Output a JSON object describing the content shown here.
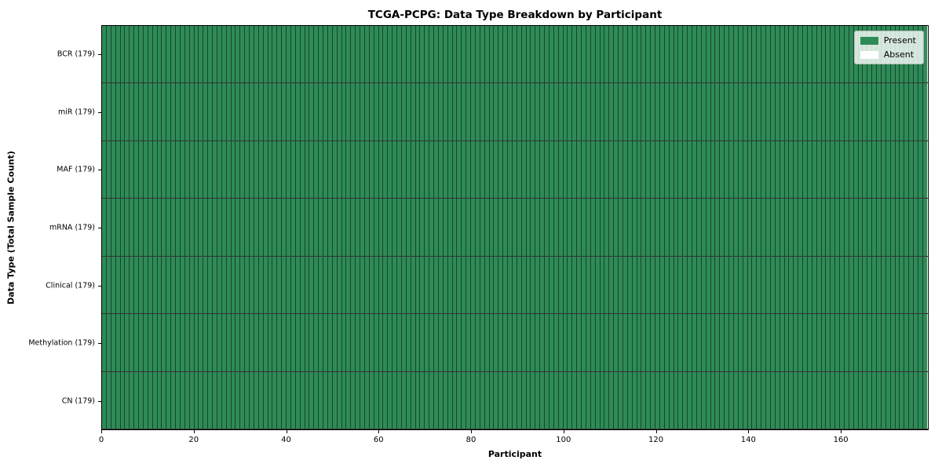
{
  "chart_data": {
    "type": "heatmap",
    "title": "TCGA-PCPG: Data Type Breakdown by Participant",
    "xlabel": "Participant",
    "ylabel": "Data Type (Total Sample Count)",
    "n_participants": 179,
    "xlim": [
      0,
      179
    ],
    "x_ticks": [
      0,
      20,
      40,
      60,
      80,
      100,
      120,
      140,
      160
    ],
    "rows": [
      {
        "label": "BCR (179)",
        "data_type": "BCR",
        "total_samples": 179,
        "present_count": 179,
        "absent_count": 0
      },
      {
        "label": "miR (179)",
        "data_type": "miR",
        "total_samples": 179,
        "present_count": 179,
        "absent_count": 0
      },
      {
        "label": "MAF (179)",
        "data_type": "MAF",
        "total_samples": 179,
        "present_count": 179,
        "absent_count": 0
      },
      {
        "label": "mRNA (179)",
        "data_type": "mRNA",
        "total_samples": 179,
        "present_count": 179,
        "absent_count": 0
      },
      {
        "label": "Clinical (179)",
        "data_type": "Clinical",
        "total_samples": 179,
        "present_count": 179,
        "absent_count": 0
      },
      {
        "label": "Methylation (179)",
        "data_type": "Methylation",
        "total_samples": 179,
        "present_count": 179,
        "absent_count": 0
      },
      {
        "label": "CN (179)",
        "data_type": "CN",
        "total_samples": 179,
        "present_count": 179,
        "absent_count": 0
      }
    ],
    "legend": {
      "position": "upper right",
      "items": [
        {
          "label": "Present",
          "color": "#2e8b57"
        },
        {
          "label": "Absent",
          "color": "#ffffff"
        }
      ]
    },
    "colors": {
      "present": "#2e8b57",
      "absent": "#ffffff",
      "cell_edge": "rgba(0,0,0,0.5)",
      "row_divider": "rgba(0,0,0,0.8)",
      "spine": "#000000",
      "background": "#ffffff"
    },
    "grid": "per-cell edges, no gridlines",
    "legend_visible": true
  }
}
